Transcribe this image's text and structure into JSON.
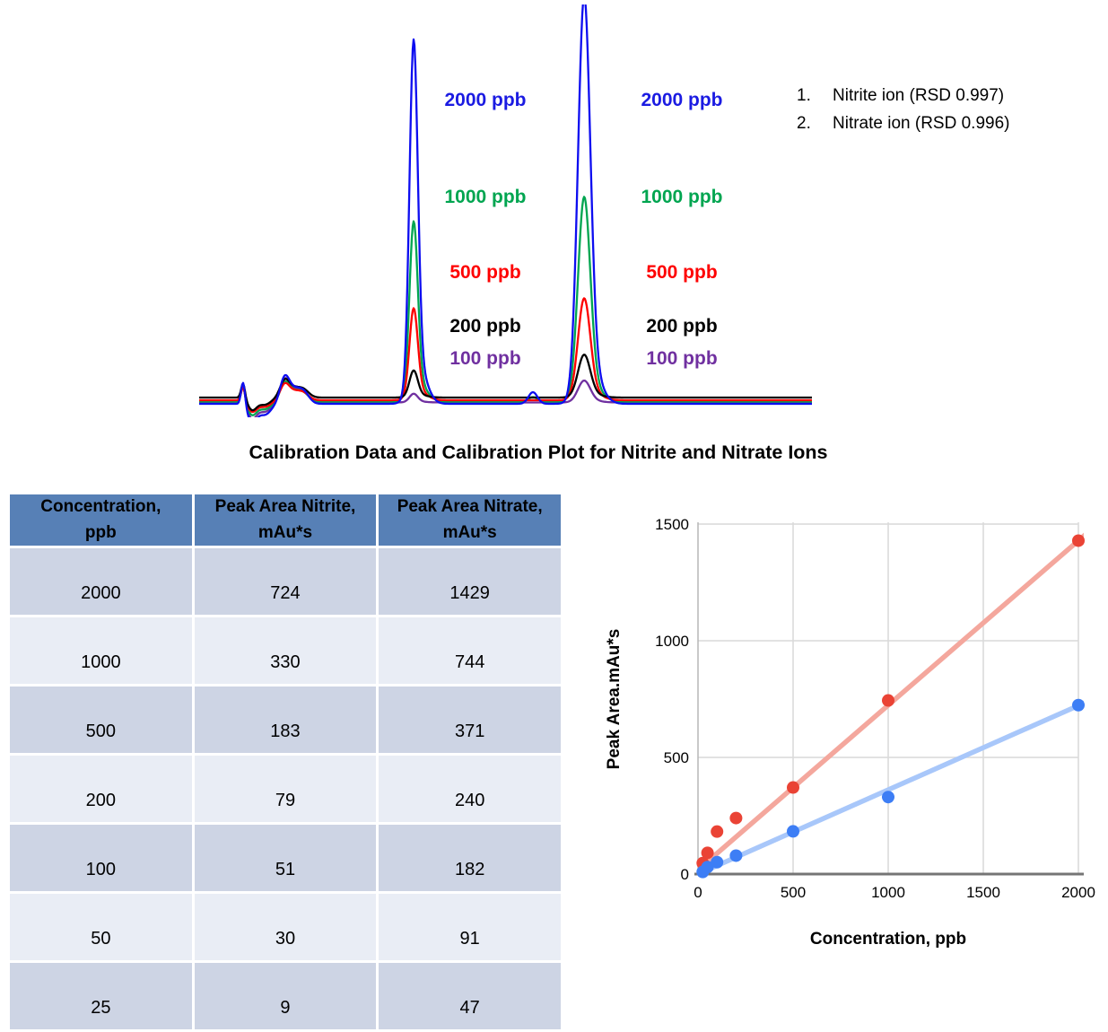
{
  "section_title": "Calibration Data and Calibration Plot for Nitrite and Nitrate Ions",
  "chromatogram": {
    "legend": [
      {
        "num": "1.",
        "text": "Nitrite ion (RSD 0.997)"
      },
      {
        "num": "2.",
        "text": "Nitrate ion (RSD 0.996)"
      }
    ],
    "conc_labels": [
      {
        "text": "2000 ppb",
        "color": "#1b1be2"
      },
      {
        "text": "1000 ppb",
        "color": "#00a550"
      },
      {
        "text": "500 ppb",
        "color": "#fe0000"
      },
      {
        "text": "200 ppb",
        "color": "#000000"
      },
      {
        "text": "100 ppb",
        "color": "#7030a0"
      }
    ],
    "traces": [
      {
        "label": "100 ppb",
        "color": "#7030a0",
        "baseline": 443.5,
        "art": 0.85,
        "peak1": 9,
        "peak2": 23,
        "bump": 0
      },
      {
        "label": "1000 ppb",
        "color": "#00a550",
        "baseline": 442.5,
        "art": 0.7,
        "peak1": 186,
        "peak2": 215,
        "bump": 5
      },
      {
        "label": "500 ppb",
        "color": "#fe0000",
        "baseline": 441,
        "art": 0.6,
        "peak1": 95,
        "peak2": 107,
        "bump": 0
      },
      {
        "label": "200 ppb",
        "color": "#000000",
        "baseline": 438,
        "art": 0.65,
        "peak1": 28,
        "peak2": 45,
        "bump": 0
      },
      {
        "label": "2000 ppb",
        "color": "#0d0df0",
        "baseline": 445,
        "art": 1.0,
        "peak1": 376,
        "peak2": 429,
        "bump": 13
      }
    ]
  },
  "table": {
    "headers": [
      [
        "Concentration,",
        "ppb"
      ],
      [
        "Peak Area Nitrite,",
        "mAu*s"
      ],
      [
        "Peak Area Nitrate,",
        "mAu*s"
      ]
    ],
    "rows": [
      [
        "2000",
        "724",
        "1429"
      ],
      [
        "1000",
        "330",
        "744"
      ],
      [
        "500",
        "183",
        "371"
      ],
      [
        "200",
        "79",
        "240"
      ],
      [
        "100",
        "51",
        "182"
      ],
      [
        "50",
        "30",
        "91"
      ],
      [
        "25",
        "9",
        "47"
      ]
    ],
    "header_bg": "#5780b6",
    "row_dark": "#cdd4e4",
    "row_light": "#e9edf5"
  },
  "chart_data": {
    "type": "scatter",
    "title": "",
    "xlabel": "Concentration, ppb",
    "ylabel": "Peak Area.mAu*s",
    "xlim": [
      0,
      2030
    ],
    "ylim": [
      0,
      1520
    ],
    "x_ticks": [
      0,
      500,
      1000,
      1500,
      2000
    ],
    "y_ticks": [
      0,
      500,
      1000,
      1500
    ],
    "grid": true,
    "legend_position": "none",
    "series": [
      {
        "name": "Peak Area Nitrate",
        "color": "#ea4335",
        "trend_color": "#f4a79d",
        "x": [
          25,
          50,
          100,
          200,
          500,
          1000,
          2000
        ],
        "y": [
          47,
          91,
          182,
          240,
          371,
          744,
          1429
        ],
        "trend": {
          "x1": 0,
          "y1": 18,
          "x2": 2055,
          "y2": 1468
        }
      },
      {
        "name": "Peak Area Nitrite",
        "color": "#3d7ef5",
        "trend_color": "#a8c7fa",
        "x": [
          25,
          50,
          100,
          200,
          500,
          1000,
          2000
        ],
        "y": [
          9,
          30,
          51,
          79,
          183,
          330,
          724
        ],
        "trend": {
          "x1": 0,
          "y1": 0,
          "x2": 2055,
          "y2": 742
        }
      }
    ],
    "axis_colors": {
      "grid": "#d9d9d9",
      "x_axis": "#757575",
      "y_axis": "#b7b7b7",
      "tick_text": "#000000"
    }
  }
}
